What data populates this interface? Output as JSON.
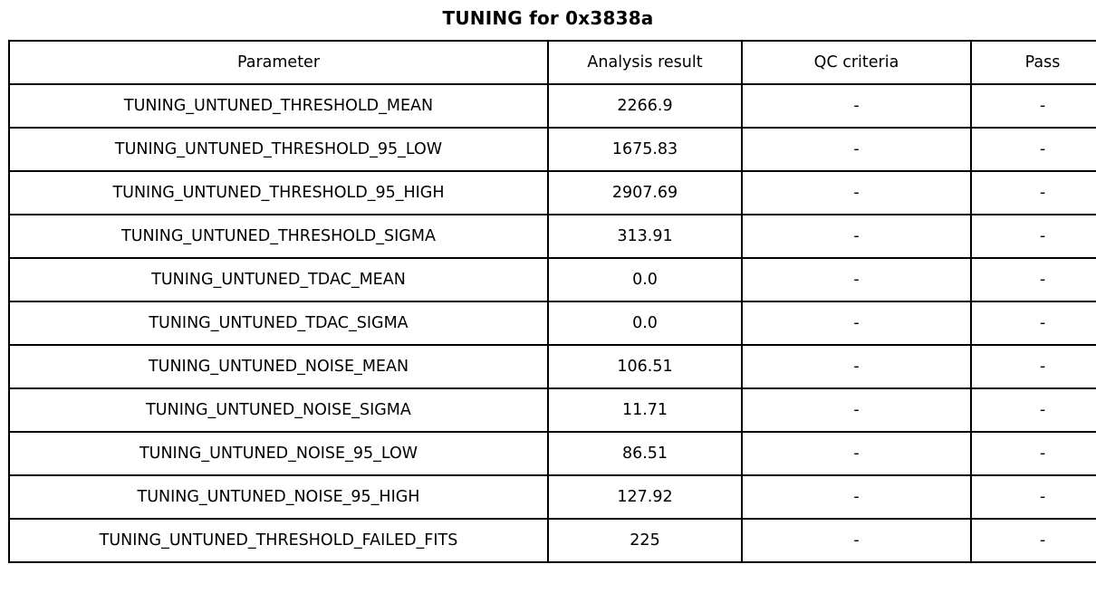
{
  "chart_data": {
    "type": "table",
    "title": "TUNING for 0x3838a",
    "columns": [
      "Parameter",
      "Analysis result",
      "QC criteria",
      "Pass"
    ],
    "rows": [
      [
        "TUNING_UNTUNED_THRESHOLD_MEAN",
        "2266.9",
        "-",
        "-"
      ],
      [
        "TUNING_UNTUNED_THRESHOLD_95_LOW",
        "1675.83",
        "-",
        "-"
      ],
      [
        "TUNING_UNTUNED_THRESHOLD_95_HIGH",
        "2907.69",
        "-",
        "-"
      ],
      [
        "TUNING_UNTUNED_THRESHOLD_SIGMA",
        "313.91",
        "-",
        "-"
      ],
      [
        "TUNING_UNTUNED_TDAC_MEAN",
        "0.0",
        "-",
        "-"
      ],
      [
        "TUNING_UNTUNED_TDAC_SIGMA",
        "0.0",
        "-",
        "-"
      ],
      [
        "TUNING_UNTUNED_NOISE_MEAN",
        "106.51",
        "-",
        "-"
      ],
      [
        "TUNING_UNTUNED_NOISE_SIGMA",
        "11.71",
        "-",
        "-"
      ],
      [
        "TUNING_UNTUNED_NOISE_95_LOW",
        "86.51",
        "-",
        "-"
      ],
      [
        "TUNING_UNTUNED_NOISE_95_HIGH",
        "127.92",
        "-",
        "-"
      ],
      [
        "TUNING_UNTUNED_THRESHOLD_FAILED_FITS",
        "225",
        "-",
        "-"
      ]
    ],
    "layout": {
      "grid": true,
      "border_color": "#000000",
      "background": "#ffffff",
      "text_align": "center"
    }
  }
}
